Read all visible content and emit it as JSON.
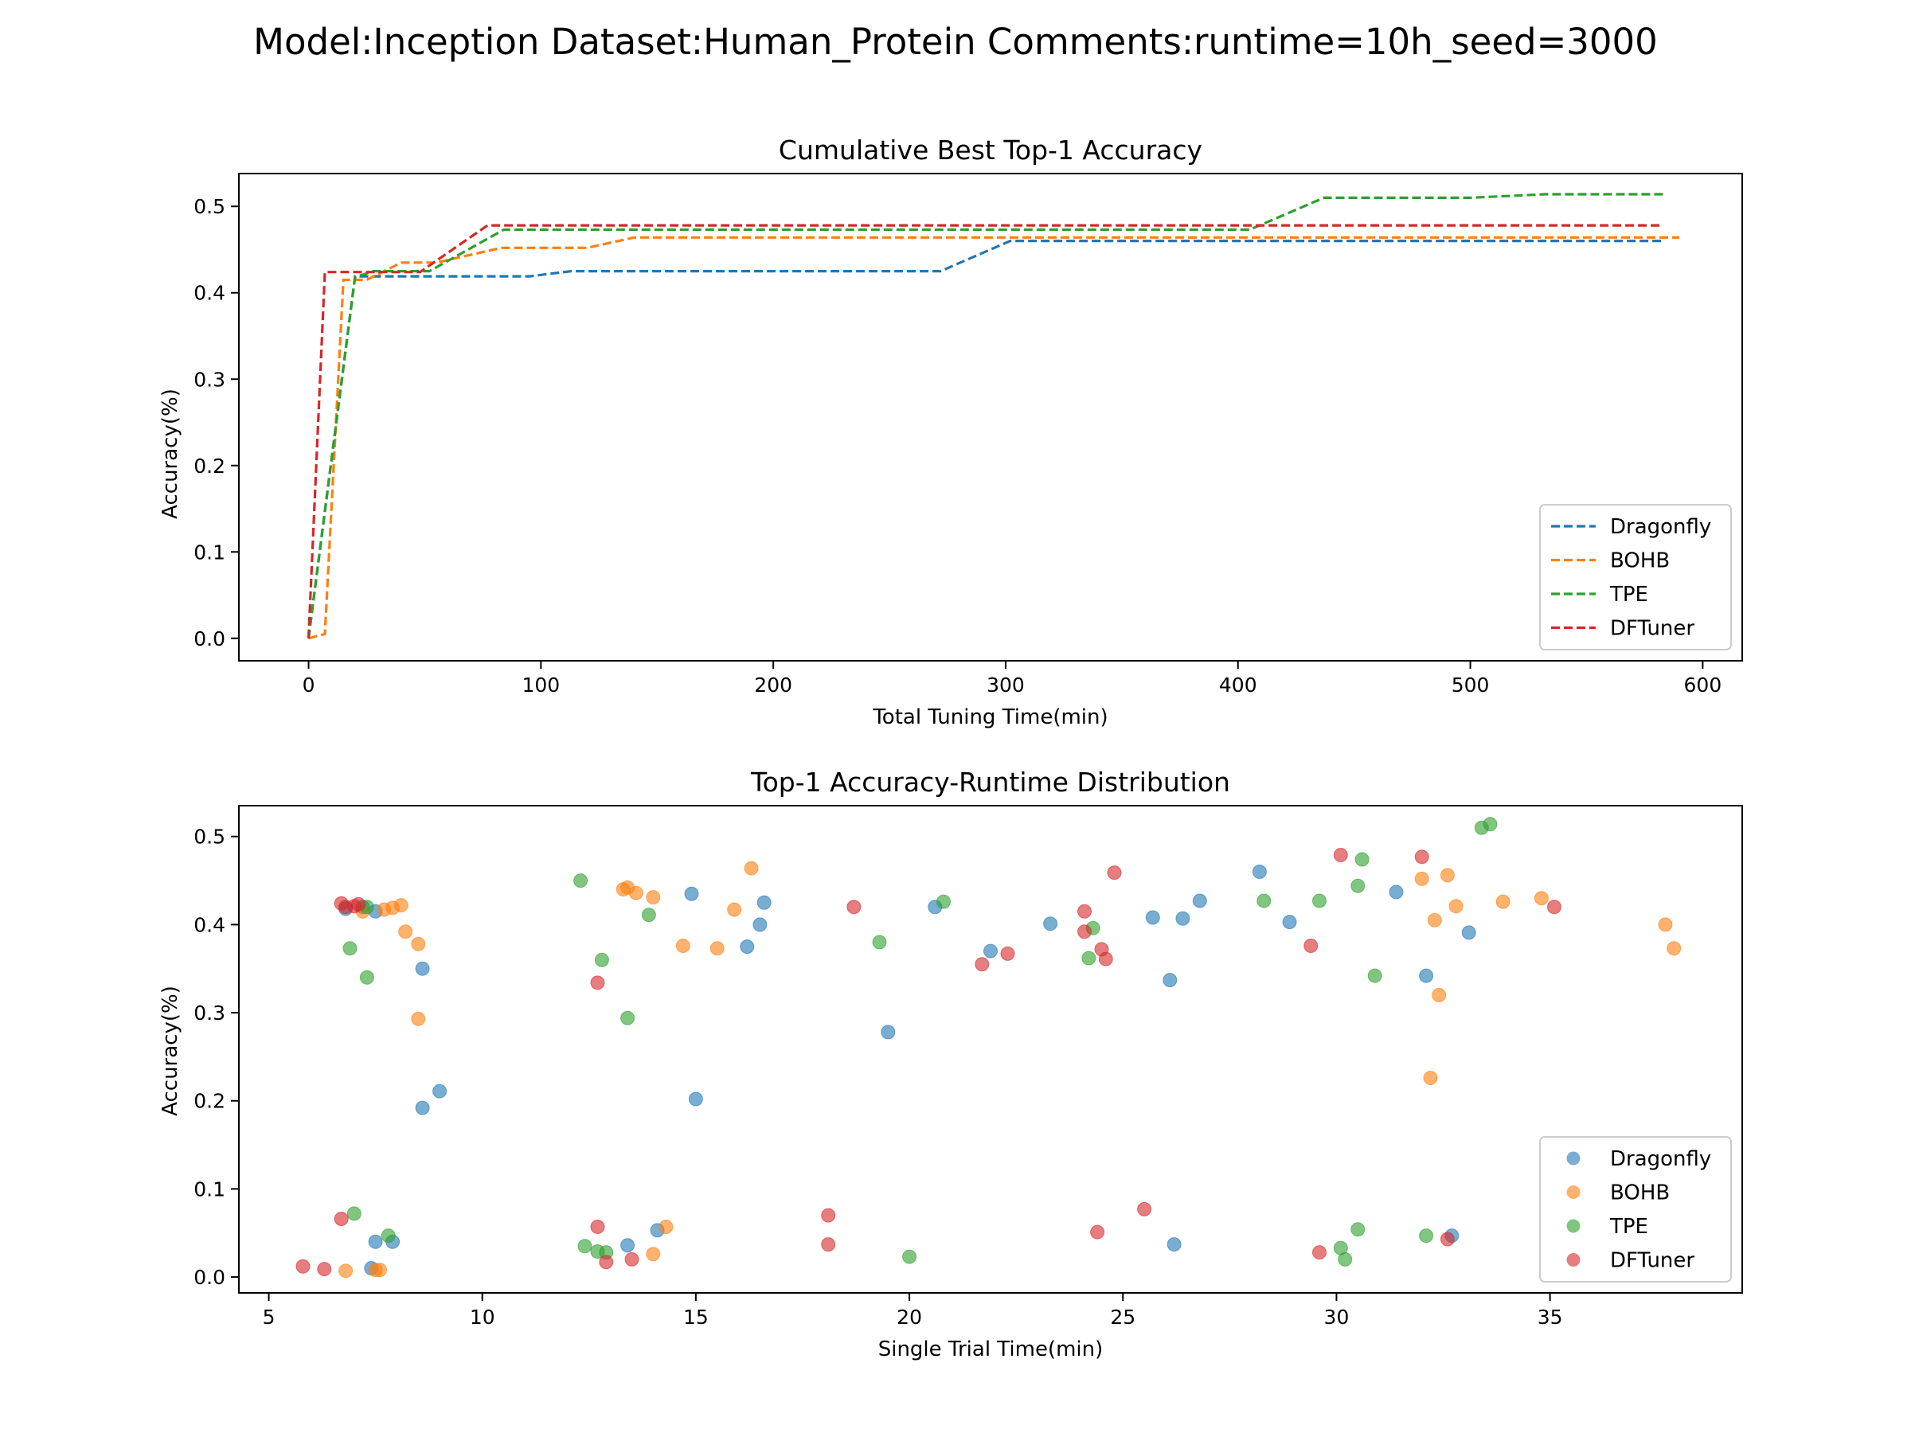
{
  "figure": {
    "suptitle": "Model:Inception Dataset:Human_Protein Comments:runtime=10h_seed=3000"
  },
  "colors": {
    "Dragonfly": "#1f77b4",
    "BOHB": "#ff7f0e",
    "TPE": "#2ca02c",
    "DFTuner": "#d62728"
  },
  "chart_data": [
    {
      "type": "line",
      "title": "Cumulative Best Top-1 Accuracy",
      "xlabel": "Total Tuning Time(min)",
      "ylabel": "Accuracy(%)",
      "xlim": [
        -30,
        617
      ],
      "ylim": [
        -0.026,
        0.538
      ],
      "xticks": [
        0,
        100,
        200,
        300,
        400,
        500,
        600
      ],
      "yticks": [
        0.0,
        0.1,
        0.2,
        0.3,
        0.4,
        0.5
      ],
      "ytick_labels": [
        "0.0",
        "0.1",
        "0.2",
        "0.3",
        "0.4",
        "0.5"
      ],
      "line_style": "dashed",
      "legend": "lower-right",
      "series": [
        {
          "name": "Dragonfly",
          "x": [
            0,
            20,
            95,
            113,
            272,
            302,
            583
          ],
          "y": [
            0.0,
            0.419,
            0.419,
            0.425,
            0.425,
            0.46,
            0.46
          ]
        },
        {
          "name": "BOHB",
          "x": [
            0,
            7,
            15,
            25,
            40,
            55,
            83,
            93,
            120,
            140,
            590
          ],
          "y": [
            0.0,
            0.005,
            0.415,
            0.415,
            0.435,
            0.435,
            0.452,
            0.452,
            0.452,
            0.464,
            0.464
          ]
        },
        {
          "name": "TPE",
          "x": [
            0,
            20,
            28,
            37,
            52,
            84,
            405,
            437,
            500,
            532,
            583
          ],
          "y": [
            0.0,
            0.418,
            0.425,
            0.425,
            0.425,
            0.473,
            0.473,
            0.51,
            0.51,
            0.514,
            0.514
          ]
        },
        {
          "name": "DFTuner",
          "x": [
            0,
            7,
            48,
            77,
            583
          ],
          "y": [
            0.0,
            0.424,
            0.424,
            0.478,
            0.478
          ]
        }
      ]
    },
    {
      "type": "scatter",
      "title": "Top-1 Accuracy-Runtime Distribution",
      "xlabel": "Single Trial Time(min)",
      "ylabel": "Accuracy(%)",
      "xlim": [
        4.3,
        39.5
      ],
      "ylim": [
        -0.018,
        0.535
      ],
      "xticks": [
        5,
        10,
        15,
        20,
        25,
        30,
        35
      ],
      "yticks": [
        0.0,
        0.1,
        0.2,
        0.3,
        0.4,
        0.5
      ],
      "ytick_labels": [
        "0.0",
        "0.1",
        "0.2",
        "0.3",
        "0.4",
        "0.5"
      ],
      "legend": "lower-right",
      "series": [
        {
          "name": "Dragonfly",
          "points": [
            [
              6.8,
              0.418
            ],
            [
              7.2,
              0.42
            ],
            [
              7.5,
              0.415
            ],
            [
              7.4,
              0.01
            ],
            [
              7.5,
              0.04
            ],
            [
              7.9,
              0.04
            ],
            [
              8.6,
              0.35
            ],
            [
              8.6,
              0.192
            ],
            [
              9.0,
              0.211
            ],
            [
              13.4,
              0.036
            ],
            [
              14.1,
              0.053
            ],
            [
              14.9,
              0.435
            ],
            [
              15.0,
              0.202
            ],
            [
              16.2,
              0.375
            ],
            [
              16.5,
              0.4
            ],
            [
              16.6,
              0.425
            ],
            [
              19.5,
              0.278
            ],
            [
              20.6,
              0.42
            ],
            [
              21.9,
              0.37
            ],
            [
              23.3,
              0.401
            ],
            [
              25.7,
              0.408
            ],
            [
              26.1,
              0.337
            ],
            [
              26.2,
              0.037
            ],
            [
              26.4,
              0.407
            ],
            [
              26.8,
              0.427
            ],
            [
              28.2,
              0.46
            ],
            [
              28.9,
              0.403
            ],
            [
              31.4,
              0.437
            ],
            [
              32.1,
              0.342
            ],
            [
              32.7,
              0.047
            ],
            [
              33.1,
              0.391
            ]
          ]
        },
        {
          "name": "BOHB",
          "points": [
            [
              6.8,
              0.007
            ],
            [
              7.2,
              0.415
            ],
            [
              7.5,
              0.008
            ],
            [
              7.6,
              0.008
            ],
            [
              7.7,
              0.417
            ],
            [
              7.9,
              0.419
            ],
            [
              8.1,
              0.422
            ],
            [
              8.2,
              0.392
            ],
            [
              8.5,
              0.378
            ],
            [
              8.5,
              0.293
            ],
            [
              13.3,
              0.44
            ],
            [
              13.4,
              0.442
            ],
            [
              13.6,
              0.436
            ],
            [
              14.0,
              0.431
            ],
            [
              14.0,
              0.026
            ],
            [
              14.3,
              0.057
            ],
            [
              14.7,
              0.376
            ],
            [
              15.5,
              0.373
            ],
            [
              15.9,
              0.417
            ],
            [
              16.3,
              0.464
            ],
            [
              32.0,
              0.452
            ],
            [
              32.2,
              0.226
            ],
            [
              32.3,
              0.405
            ],
            [
              32.4,
              0.32
            ],
            [
              32.6,
              0.456
            ],
            [
              32.8,
              0.421
            ],
            [
              33.9,
              0.426
            ],
            [
              34.8,
              0.43
            ],
            [
              37.7,
              0.4
            ],
            [
              37.9,
              0.373
            ]
          ]
        },
        {
          "name": "TPE",
          "points": [
            [
              6.9,
              0.373
            ],
            [
              7.0,
              0.072
            ],
            [
              7.3,
              0.42
            ],
            [
              7.3,
              0.34
            ],
            [
              7.8,
              0.047
            ],
            [
              12.3,
              0.45
            ],
            [
              12.4,
              0.035
            ],
            [
              12.7,
              0.029
            ],
            [
              12.8,
              0.36
            ],
            [
              12.9,
              0.028
            ],
            [
              13.4,
              0.294
            ],
            [
              13.9,
              0.411
            ],
            [
              19.3,
              0.38
            ],
            [
              20.0,
              0.023
            ],
            [
              20.8,
              0.426
            ],
            [
              24.2,
              0.362
            ],
            [
              24.3,
              0.396
            ],
            [
              28.3,
              0.427
            ],
            [
              29.6,
              0.427
            ],
            [
              30.1,
              0.033
            ],
            [
              30.2,
              0.02
            ],
            [
              30.5,
              0.444
            ],
            [
              30.5,
              0.054
            ],
            [
              30.6,
              0.474
            ],
            [
              30.9,
              0.342
            ],
            [
              32.1,
              0.047
            ],
            [
              33.4,
              0.51
            ],
            [
              33.6,
              0.514
            ]
          ]
        },
        {
          "name": "DFTuner",
          "points": [
            [
              5.8,
              0.012
            ],
            [
              6.3,
              0.009
            ],
            [
              6.7,
              0.066
            ],
            [
              6.7,
              0.424
            ],
            [
              6.8,
              0.42
            ],
            [
              7.0,
              0.421
            ],
            [
              7.1,
              0.423
            ],
            [
              12.7,
              0.057
            ],
            [
              12.7,
              0.334
            ],
            [
              12.9,
              0.017
            ],
            [
              13.5,
              0.02
            ],
            [
              18.1,
              0.07
            ],
            [
              18.1,
              0.037
            ],
            [
              18.7,
              0.42
            ],
            [
              21.7,
              0.355
            ],
            [
              22.3,
              0.367
            ],
            [
              24.1,
              0.392
            ],
            [
              24.1,
              0.415
            ],
            [
              24.4,
              0.051
            ],
            [
              24.5,
              0.372
            ],
            [
              24.6,
              0.361
            ],
            [
              24.8,
              0.459
            ],
            [
              25.5,
              0.077
            ],
            [
              29.4,
              0.376
            ],
            [
              29.6,
              0.028
            ],
            [
              30.1,
              0.479
            ],
            [
              32.0,
              0.477
            ],
            [
              32.6,
              0.043
            ],
            [
              35.1,
              0.42
            ]
          ]
        }
      ]
    }
  ]
}
